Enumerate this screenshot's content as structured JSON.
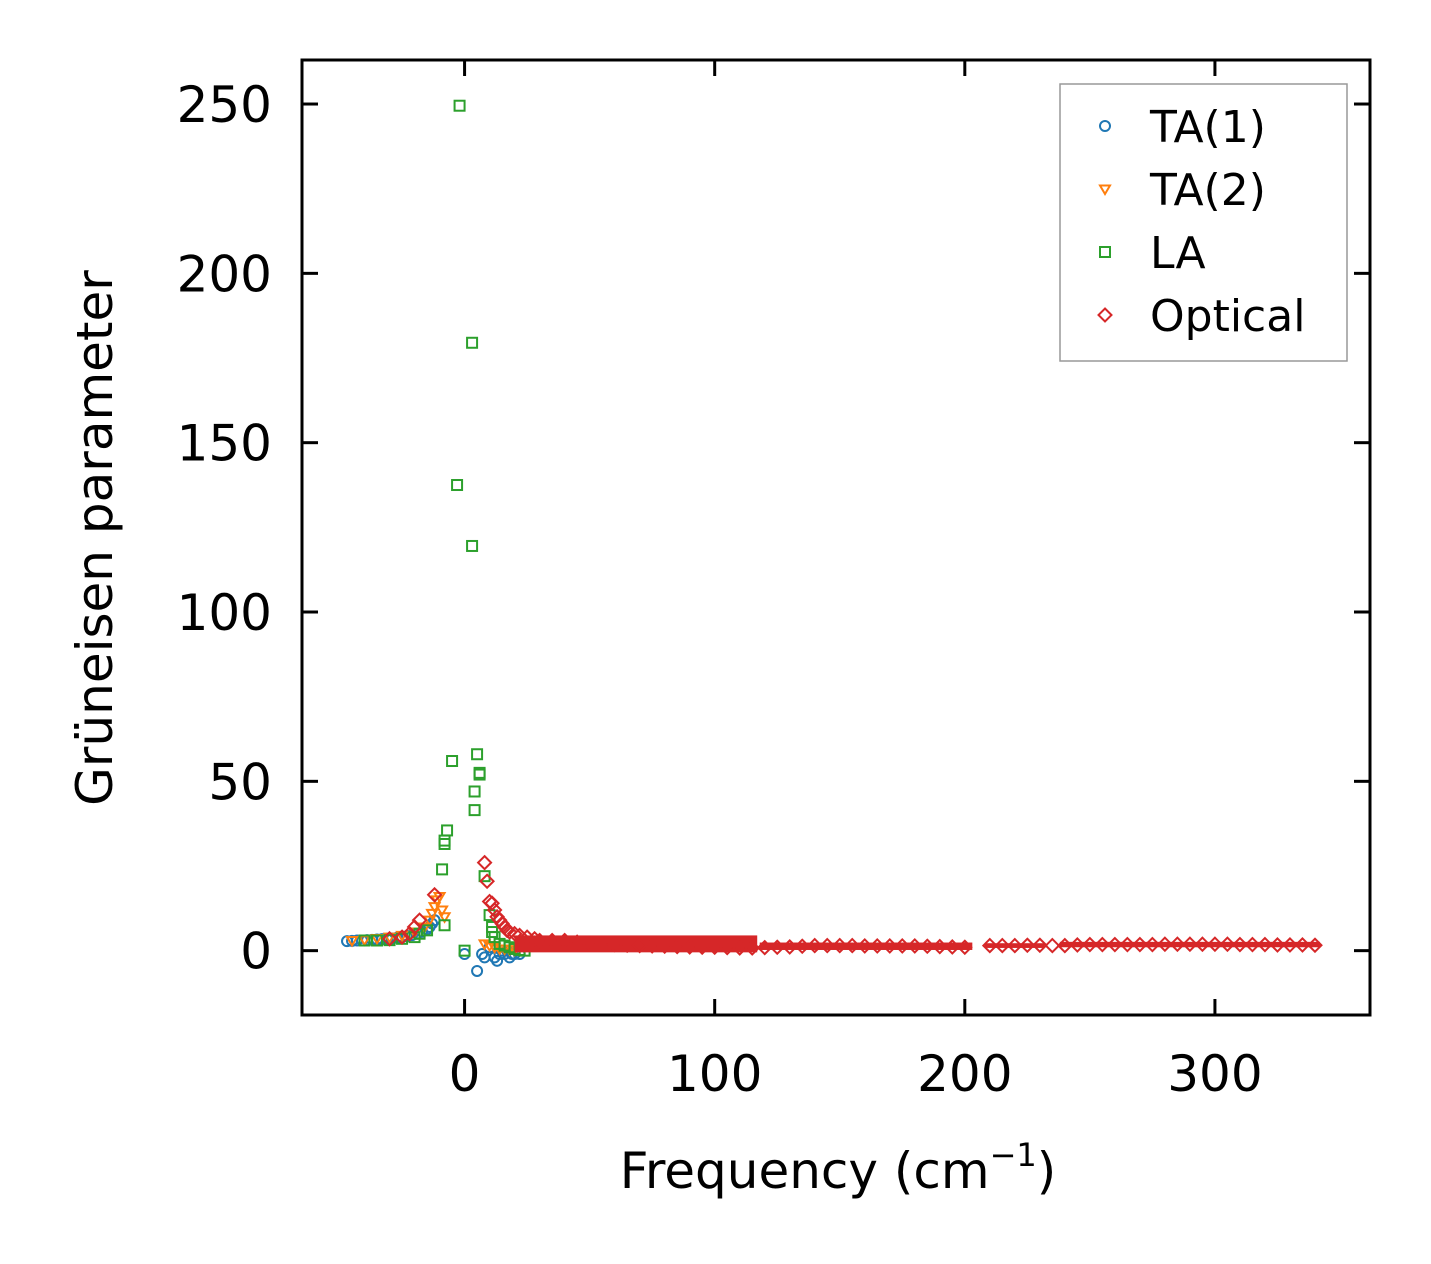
{
  "chart_data": {
    "type": "scatter",
    "title": "",
    "xlabel": "Frequency (cm",
    "xlabel_sup": "−1",
    "xlabel_close": ")",
    "ylabel": "Grüneisen parameter",
    "xlim": [
      -65,
      362
    ],
    "ylim": [
      -19,
      263
    ],
    "xticks": [
      0,
      100,
      200,
      300
    ],
    "xtick_labels": [
      "0",
      "100",
      "200",
      "300"
    ],
    "yticks": [
      0,
      50,
      100,
      150,
      200,
      250
    ],
    "ytick_labels": [
      "0",
      "50",
      "100",
      "150",
      "200",
      "250"
    ],
    "grid": false,
    "legend_position": "top-right",
    "series": [
      {
        "name": "TA(1)",
        "marker": "circle",
        "color": "#1f77b4",
        "points": [
          [
            -47,
            2.8
          ],
          [
            -45,
            2.9
          ],
          [
            -43,
            3.0
          ],
          [
            -41,
            3.0
          ],
          [
            -39,
            3.1
          ],
          [
            -37,
            3.2
          ],
          [
            -35,
            3.3
          ],
          [
            -33,
            3.4
          ],
          [
            -31,
            3.5
          ],
          [
            -29,
            3.6
          ],
          [
            -27,
            3.8
          ],
          [
            -25,
            4.0
          ],
          [
            -23,
            4.3
          ],
          [
            -21,
            4.6
          ],
          [
            -19,
            5.0
          ],
          [
            -17,
            5.6
          ],
          [
            -15,
            6.3
          ],
          [
            -14,
            7.0
          ],
          [
            -13,
            8.0
          ],
          [
            -12,
            9.0
          ],
          [
            0,
            -1
          ],
          [
            5,
            -6
          ],
          [
            7,
            -1
          ],
          [
            8,
            -2
          ],
          [
            10,
            1
          ],
          [
            12,
            -2
          ],
          [
            13,
            -3
          ],
          [
            14,
            -1
          ],
          [
            15,
            0
          ],
          [
            16,
            -1
          ],
          [
            17,
            0
          ],
          [
            18,
            -2
          ],
          [
            19,
            -1
          ],
          [
            20,
            -1
          ],
          [
            22,
            -1
          ]
        ]
      },
      {
        "name": "TA(2)",
        "marker": "triangle-down",
        "color": "#ff7f0e",
        "points": [
          [
            -45,
            3.0
          ],
          [
            -40,
            3.2
          ],
          [
            -35,
            3.6
          ],
          [
            -30,
            4.0
          ],
          [
            -25,
            4.5
          ],
          [
            -20,
            5.5
          ],
          [
            -16,
            7.0
          ],
          [
            -14,
            9.0
          ],
          [
            -13,
            11.0
          ],
          [
            -12,
            13.0
          ],
          [
            -11,
            15.0
          ],
          [
            -10,
            16.0
          ],
          [
            -9,
            12.0
          ],
          [
            -8,
            10.0
          ],
          [
            8,
            2.0
          ],
          [
            10,
            1.5
          ],
          [
            12,
            1.0
          ],
          [
            14,
            0.5
          ],
          [
            16,
            0.5
          ],
          [
            18,
            0.3
          ],
          [
            20,
            0.2
          ]
        ]
      },
      {
        "name": "LA",
        "marker": "square",
        "color": "#2ca02c",
        "points": [
          [
            -2,
            249.5
          ],
          [
            3,
            179.5
          ],
          [
            -3,
            137.5
          ],
          [
            3,
            119.5
          ],
          [
            -5,
            56
          ],
          [
            5,
            58
          ],
          [
            6,
            52.5
          ],
          [
            6,
            52
          ],
          [
            4,
            47
          ],
          [
            4,
            41.5
          ],
          [
            -7,
            35.5
          ],
          [
            -8,
            32.5
          ],
          [
            -8,
            31.5
          ],
          [
            -9,
            24
          ],
          [
            8,
            22
          ],
          [
            10,
            10.5
          ],
          [
            11,
            7
          ],
          [
            11,
            5.5
          ],
          [
            12,
            4
          ],
          [
            -8,
            7.5
          ],
          [
            0,
            0
          ],
          [
            -40,
            3
          ],
          [
            -35,
            3
          ],
          [
            -30,
            3.1
          ],
          [
            -25,
            3.5
          ],
          [
            -20,
            4
          ],
          [
            -18,
            5
          ],
          [
            -15,
            6
          ],
          [
            14,
            2
          ],
          [
            16,
            1.5
          ],
          [
            18,
            1
          ],
          [
            20,
            0.5
          ],
          [
            22,
            0.2
          ],
          [
            24,
            0
          ]
        ]
      },
      {
        "name": "Optical",
        "marker": "diamond",
        "color": "#d62728",
        "points": [
          [
            -12,
            16.5
          ],
          [
            -18,
            9
          ],
          [
            8,
            26
          ],
          [
            9,
            20.5
          ],
          [
            10,
            14.5
          ],
          [
            11,
            14
          ],
          [
            -20,
            7
          ],
          [
            -22,
            5
          ],
          [
            -25,
            4
          ],
          [
            -30,
            3.5
          ],
          [
            12,
            12
          ],
          [
            13,
            10
          ],
          [
            14,
            9
          ],
          [
            15,
            8
          ],
          [
            16,
            7
          ],
          [
            17,
            6
          ],
          [
            18,
            5.5
          ],
          [
            20,
            5
          ],
          [
            22,
            4.5
          ],
          [
            25,
            4
          ],
          [
            28,
            3.5
          ],
          [
            30,
            3
          ],
          [
            35,
            3
          ],
          [
            40,
            3
          ],
          [
            45,
            2.5
          ],
          [
            50,
            2
          ],
          [
            55,
            2
          ],
          [
            60,
            1.8
          ],
          [
            65,
            1.6
          ],
          [
            70,
            1.5
          ],
          [
            75,
            1.4
          ],
          [
            80,
            1.3
          ],
          [
            85,
            1.2
          ],
          [
            90,
            1.1
          ],
          [
            95,
            1.0
          ],
          [
            100,
            1.0
          ],
          [
            105,
            0.9
          ],
          [
            110,
            0.8
          ],
          [
            115,
            0.8
          ],
          [
            120,
            0.9
          ],
          [
            125,
            1.0
          ],
          [
            130,
            1.1
          ],
          [
            135,
            1.3
          ],
          [
            140,
            1.5
          ],
          [
            145,
            1.5
          ],
          [
            150,
            1.5
          ],
          [
            155,
            1.5
          ],
          [
            160,
            1.4
          ],
          [
            165,
            1.4
          ],
          [
            170,
            1.4
          ],
          [
            175,
            1.4
          ],
          [
            180,
            1.4
          ],
          [
            185,
            1.3
          ],
          [
            190,
            1.2
          ],
          [
            195,
            1.1
          ],
          [
            200,
            1.0
          ],
          [
            210,
            1.5
          ],
          [
            215,
            1.5
          ],
          [
            220,
            1.5
          ],
          [
            225,
            1.6
          ],
          [
            230,
            1.6
          ],
          [
            235,
            1.5
          ],
          [
            240,
            1.5
          ],
          [
            245,
            1.7
          ],
          [
            250,
            1.8
          ],
          [
            255,
            1.8
          ],
          [
            260,
            1.8
          ],
          [
            265,
            1.8
          ],
          [
            270,
            1.8
          ],
          [
            275,
            1.8
          ],
          [
            280,
            1.9
          ],
          [
            285,
            1.9
          ],
          [
            290,
            1.9
          ],
          [
            295,
            1.9
          ],
          [
            300,
            1.9
          ],
          [
            305,
            1.9
          ],
          [
            310,
            1.8
          ],
          [
            315,
            1.8
          ],
          [
            320,
            1.8
          ],
          [
            325,
            1.7
          ],
          [
            330,
            1.7
          ],
          [
            335,
            1.7
          ],
          [
            340,
            1.6
          ]
        ],
        "bands": [
          [
            20,
            117,
            -0.5,
            4.5
          ],
          [
            118,
            203,
            0.2,
            2.4
          ],
          [
            208,
            232,
            0.8,
            2.2
          ],
          [
            238,
            342,
            1.0,
            2.6
          ]
        ]
      }
    ]
  }
}
